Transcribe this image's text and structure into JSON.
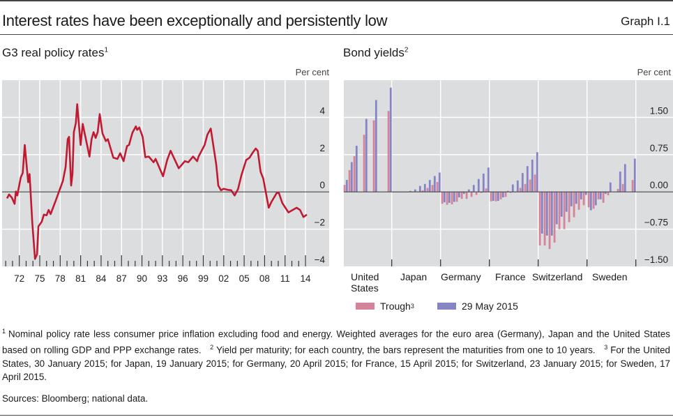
{
  "header": {
    "title": "Interest rates have been exceptionally and persistently low",
    "graph_number": "Graph I.1"
  },
  "colors": {
    "line": "#c01a32",
    "trough": "#d4849a",
    "may2015": "#8585c5",
    "plot_bg": "#dcdddf",
    "grid": "#ffffff",
    "zero_line": "#444444"
  },
  "chart_data": [
    {
      "type": "line",
      "title": "G3 real policy rates",
      "title_footnote": "1",
      "ylabel": "Per cent",
      "ylim": [
        -4,
        6
      ],
      "yticks": [
        -4,
        -2,
        0,
        2,
        4
      ],
      "ytick_labels": [
        "−4",
        "−2",
        "0",
        "2",
        "4"
      ],
      "xticks": [
        1972,
        1975,
        1978,
        1981,
        1984,
        1987,
        1990,
        1993,
        1996,
        1999,
        2002,
        2005,
        2008,
        2011,
        2014
      ],
      "xtick_labels": [
        "72",
        "75",
        "78",
        "81",
        "84",
        "87",
        "90",
        "93",
        "96",
        "99",
        "02",
        "05",
        "08",
        "11",
        "14"
      ],
      "grid": true,
      "series": [
        {
          "x": [
            1970.2,
            1970.5,
            1970.9,
            1971.3,
            1971.5,
            1971.7,
            1972.2,
            1972.5,
            1972.8,
            1973.3,
            1973.5,
            1973.9,
            1974.3,
            1974.6,
            1974.8,
            1975.3,
            1975.6,
            1976.0,
            1976.3,
            1976.6,
            1977.4,
            1977.9,
            1978.4,
            1978.8,
            1979.1,
            1979.3,
            1979.6,
            1979.8,
            1980.0,
            1980.3,
            1980.5,
            1981.0,
            1981.3,
            1982.3,
            1982.6,
            1982.9,
            1983.2,
            1983.5,
            1983.8,
            1984.2,
            1984.7,
            1985.0,
            1985.8,
            1986.4,
            1986.8,
            1987.3,
            1987.8,
            1988.1,
            1988.6,
            1989.1,
            1989.3,
            1989.6,
            1990.1,
            1990.5,
            1991.0,
            1991.7,
            1992.0,
            1993.1,
            1993.7,
            1994.2,
            1995.4,
            1996.3,
            1996.8,
            1997.5,
            1998.1,
            1998.3,
            1999.2,
            1999.6,
            2000.1,
            2000.9,
            2001.2,
            2001.6,
            2002.0,
            2002.6,
            2003.1,
            2003.6,
            2004.1,
            2004.6,
            2005.3,
            2005.8,
            2006.2,
            2006.7,
            2007.0,
            2007.4,
            2007.8,
            2008.6,
            2009.0,
            2009.8,
            2010.1,
            2010.6,
            2011.5,
            2012.7,
            2013.2,
            2013.7,
            2014.2
          ],
          "y": [
            -0.35,
            -0.14,
            -0.31,
            -0.64,
            0.02,
            -0.19,
            0.77,
            1.02,
            2.52,
            0.52,
            0.96,
            -1.66,
            -3.6,
            -3.35,
            -1.85,
            -1.6,
            -1.22,
            -1.26,
            -0.97,
            -1.19,
            -0.41,
            0.09,
            0.59,
            1.34,
            2.83,
            2.96,
            0.34,
            0.96,
            3.21,
            3.71,
            4.71,
            2.52,
            3.65,
            1.9,
            2.83,
            3.21,
            2.9,
            3.21,
            4.18,
            3.15,
            2.73,
            2.83,
            1.84,
            1.77,
            2.08,
            1.65,
            2.46,
            2.52,
            3.18,
            3.52,
            3.33,
            3.46,
            2.96,
            1.86,
            1.9,
            1.59,
            1.77,
            0.84,
            1.71,
            2.21,
            1.27,
            1.65,
            1.59,
            1.9,
            1.65,
            1.9,
            2.52,
            3.08,
            3.4,
            1.46,
            0.34,
            0.09,
            0.17,
            0.11,
            0.09,
            -0.19,
            0.15,
            0.9,
            1.71,
            1.84,
            2.08,
            2.33,
            2.21,
            1.09,
            0.71,
            -0.85,
            -0.54,
            -0.04,
            -0.06,
            -0.6,
            -1.1,
            -0.85,
            -0.97,
            -1.35,
            -1.22
          ]
        }
      ]
    },
    {
      "type": "bar",
      "title": "Bond yields",
      "title_footnote": "2",
      "ylabel": "Per cent",
      "ylim": [
        -1.5,
        2.25
      ],
      "yticks": [
        -1.5,
        -0.75,
        0,
        0.75,
        1.5
      ],
      "ytick_labels": [
        "−1.50",
        "−0.75",
        "0.00",
        "0.75",
        "1.50"
      ],
      "grid": true,
      "categories": [
        "United States",
        "Japan",
        "Germany",
        "France",
        "Switzerland",
        "Sweden"
      ],
      "maturities": [
        1,
        2,
        3,
        4,
        5,
        6,
        7,
        8,
        9,
        10
      ],
      "legend_position": "bottom",
      "series": [
        {
          "name": "Trough",
          "name_footnote": "3",
          "values": [
            [
              0.14,
              0.44,
              0.72,
              null,
              1.15,
              null,
              1.44,
              null,
              null,
              1.63
            ],
            [
              -0.01,
              -0.01,
              -0.01,
              0.0,
              0.0,
              0.01,
              0.03,
              0.08,
              0.14,
              0.2
            ],
            [
              -0.24,
              -0.26,
              -0.25,
              -0.2,
              -0.14,
              -0.14,
              -0.1,
              -0.06,
              -0.02,
              0.07
            ],
            [
              -0.19,
              -0.19,
              -0.15,
              -0.1,
              -0.02,
              -0.01,
              0.08,
              0.16,
              0.25,
              0.35
            ],
            [
              -1.08,
              -1.08,
              -1.15,
              -1.02,
              -0.75,
              -0.75,
              -0.61,
              -0.51,
              -0.36,
              -0.27
            ],
            [
              -0.31,
              -0.34,
              -0.15,
              -0.22,
              -0.07,
              null,
              0.06,
              0.16,
              null,
              0.24
            ]
          ]
        },
        {
          "name": "29 May 2015",
          "values": [
            [
              0.24,
              0.6,
              0.93,
              null,
              1.47,
              null,
              1.85,
              null,
              null,
              2.1
            ],
            [
              0.0,
              0.0,
              0.0,
              0.02,
              0.05,
              0.12,
              0.16,
              0.24,
              0.32,
              0.39
            ],
            [
              -0.21,
              -0.22,
              -0.2,
              -0.11,
              -0.04,
              0.05,
              0.14,
              0.26,
              0.37,
              0.49
            ],
            [
              -0.18,
              -0.18,
              -0.11,
              0.02,
              0.15,
              0.23,
              0.38,
              0.52,
              0.65,
              0.8
            ],
            [
              -0.84,
              -0.88,
              -0.88,
              -0.65,
              -0.5,
              -0.4,
              -0.29,
              -0.24,
              -0.15,
              -0.06
            ],
            [
              -0.37,
              -0.27,
              -0.15,
              -0.04,
              0.19,
              null,
              0.41,
              0.56,
              null,
              0.67
            ]
          ]
        }
      ]
    }
  ],
  "country_labels": {
    "us_line1": "United",
    "us_line2": "States",
    "japan": "Japan",
    "germany": "Germany",
    "france": "France",
    "switzerland": "Switzerland",
    "sweden": "Sweden"
  },
  "footnotes": [
    {
      "marker": "1",
      "text": "Nominal policy rate less consumer price inflation excluding food and energy. Weighted averages for the euro area (Germany), Japan and the United States based on rolling GDP and PPP exchange rates."
    },
    {
      "marker": "2",
      "text": "Yield per maturity; for each country, the bars represent the maturities from one to 10 years."
    },
    {
      "marker": "3",
      "text": "For the United States, 30 January 2015; for Japan, 19 January 2015; for Germany, 20 April 2015; for France, 15 April 2015; for Switzerland, 23 January 2015; for Sweden, 17 April 2015."
    }
  ],
  "sources": "Sources: Bloomberg; national data."
}
